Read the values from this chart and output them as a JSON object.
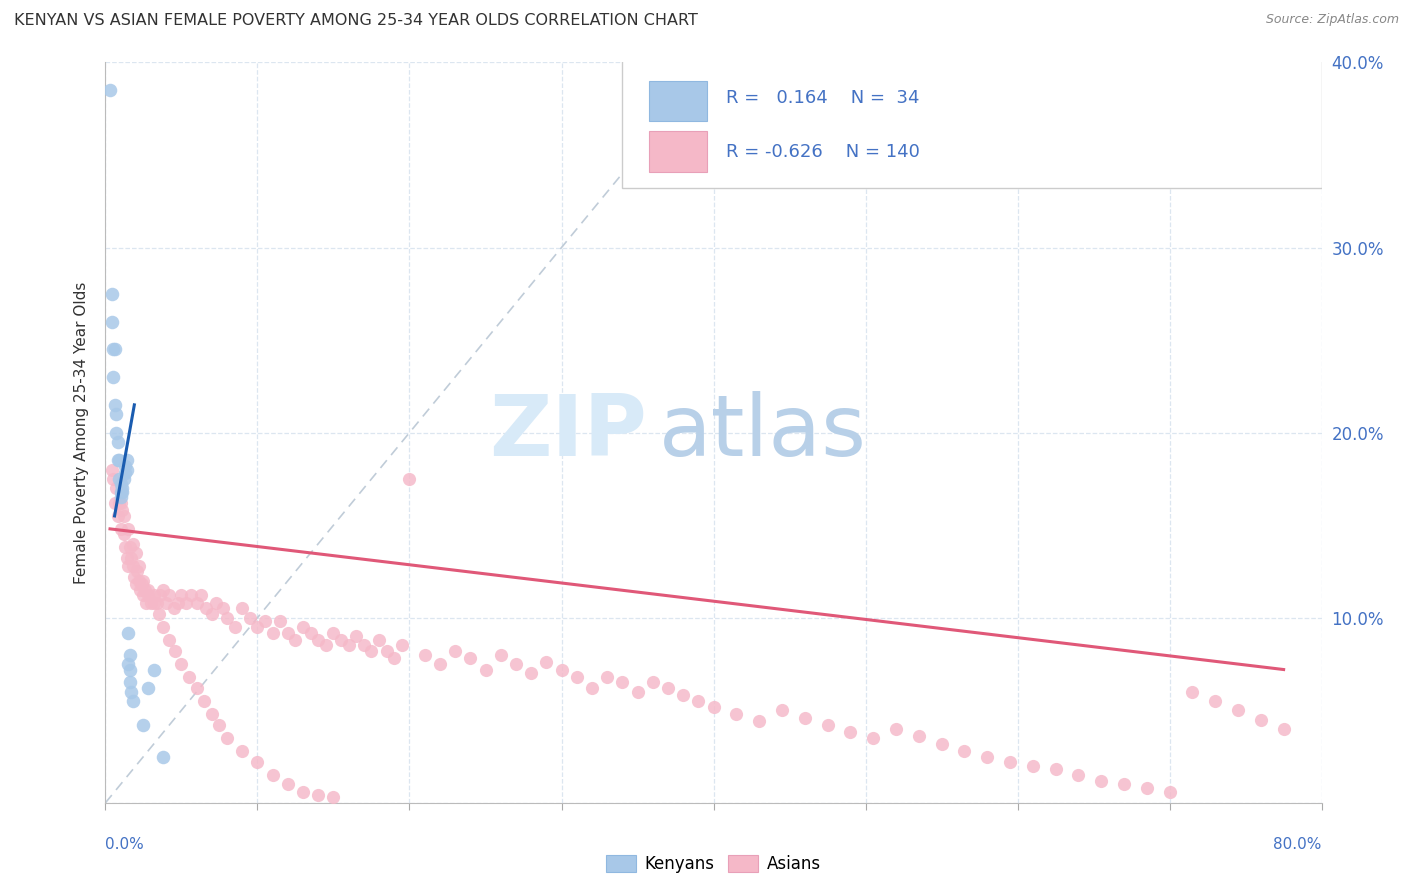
{
  "title": "KENYAN VS ASIAN FEMALE POVERTY AMONG 25-34 YEAR OLDS CORRELATION CHART",
  "source": "Source: ZipAtlas.com",
  "ylabel": "Female Poverty Among 25-34 Year Olds",
  "xlim": [
    0.0,
    0.8
  ],
  "ylim": [
    0.0,
    0.4
  ],
  "kenyan_R": 0.164,
  "kenyan_N": 34,
  "asian_R": -0.626,
  "asian_N": 140,
  "kenyan_dot_color": "#a8c8e8",
  "asian_dot_color": "#f5b8c8",
  "kenyan_line_color": "#1a5cb0",
  "asian_line_color": "#e05878",
  "ref_line_color": "#c0ccd8",
  "text_blue": "#4472c4",
  "text_dark": "#333333",
  "text_source": "#888888",
  "watermark_zip_color": "#d8eaf8",
  "watermark_atlas_color": "#b8d0e8",
  "grid_color": "#dce6f0",
  "legend_box_color": "#f0f0f0",
  "kenyan_x": [
    0.003,
    0.004,
    0.004,
    0.005,
    0.005,
    0.006,
    0.006,
    0.007,
    0.007,
    0.008,
    0.008,
    0.009,
    0.009,
    0.01,
    0.01,
    0.01,
    0.011,
    0.011,
    0.012,
    0.013,
    0.013,
    0.014,
    0.014,
    0.015,
    0.015,
    0.016,
    0.016,
    0.016,
    0.017,
    0.018,
    0.025,
    0.028,
    0.032,
    0.038
  ],
  "kenyan_y": [
    0.385,
    0.275,
    0.26,
    0.245,
    0.23,
    0.245,
    0.215,
    0.21,
    0.2,
    0.195,
    0.185,
    0.185,
    0.175,
    0.172,
    0.168,
    0.165,
    0.168,
    0.17,
    0.175,
    0.178,
    0.182,
    0.18,
    0.185,
    0.092,
    0.075,
    0.072,
    0.065,
    0.08,
    0.06,
    0.055,
    0.042,
    0.062,
    0.072,
    0.025
  ],
  "asian_x": [
    0.004,
    0.005,
    0.006,
    0.007,
    0.008,
    0.009,
    0.01,
    0.011,
    0.012,
    0.013,
    0.014,
    0.015,
    0.016,
    0.017,
    0.018,
    0.019,
    0.02,
    0.021,
    0.022,
    0.023,
    0.024,
    0.025,
    0.026,
    0.027,
    0.028,
    0.03,
    0.032,
    0.034,
    0.036,
    0.038,
    0.04,
    0.042,
    0.045,
    0.048,
    0.05,
    0.053,
    0.056,
    0.06,
    0.063,
    0.066,
    0.07,
    0.073,
    0.077,
    0.08,
    0.085,
    0.09,
    0.095,
    0.1,
    0.105,
    0.11,
    0.115,
    0.12,
    0.125,
    0.13,
    0.135,
    0.14,
    0.145,
    0.15,
    0.155,
    0.16,
    0.165,
    0.17,
    0.175,
    0.18,
    0.185,
    0.19,
    0.195,
    0.2,
    0.21,
    0.22,
    0.23,
    0.24,
    0.25,
    0.26,
    0.27,
    0.28,
    0.29,
    0.3,
    0.31,
    0.32,
    0.33,
    0.34,
    0.35,
    0.36,
    0.37,
    0.38,
    0.39,
    0.4,
    0.415,
    0.43,
    0.445,
    0.46,
    0.475,
    0.49,
    0.505,
    0.52,
    0.535,
    0.55,
    0.565,
    0.58,
    0.595,
    0.61,
    0.625,
    0.64,
    0.655,
    0.67,
    0.685,
    0.7,
    0.715,
    0.73,
    0.745,
    0.76,
    0.775,
    0.01,
    0.012,
    0.015,
    0.018,
    0.02,
    0.022,
    0.025,
    0.028,
    0.032,
    0.035,
    0.038,
    0.042,
    0.046,
    0.05,
    0.055,
    0.06,
    0.065,
    0.07,
    0.075,
    0.08,
    0.09,
    0.1,
    0.11,
    0.12,
    0.13,
    0.14,
    0.15
  ],
  "asian_y": [
    0.18,
    0.175,
    0.162,
    0.17,
    0.155,
    0.162,
    0.148,
    0.158,
    0.145,
    0.138,
    0.132,
    0.128,
    0.138,
    0.132,
    0.128,
    0.122,
    0.118,
    0.125,
    0.12,
    0.115,
    0.118,
    0.112,
    0.115,
    0.108,
    0.112,
    0.108,
    0.112,
    0.108,
    0.112,
    0.115,
    0.108,
    0.112,
    0.105,
    0.108,
    0.112,
    0.108,
    0.112,
    0.108,
    0.112,
    0.105,
    0.102,
    0.108,
    0.105,
    0.1,
    0.095,
    0.105,
    0.1,
    0.095,
    0.098,
    0.092,
    0.098,
    0.092,
    0.088,
    0.095,
    0.092,
    0.088,
    0.085,
    0.092,
    0.088,
    0.085,
    0.09,
    0.085,
    0.082,
    0.088,
    0.082,
    0.078,
    0.085,
    0.175,
    0.08,
    0.075,
    0.082,
    0.078,
    0.072,
    0.08,
    0.075,
    0.07,
    0.076,
    0.072,
    0.068,
    0.062,
    0.068,
    0.065,
    0.06,
    0.065,
    0.062,
    0.058,
    0.055,
    0.052,
    0.048,
    0.044,
    0.05,
    0.046,
    0.042,
    0.038,
    0.035,
    0.04,
    0.036,
    0.032,
    0.028,
    0.025,
    0.022,
    0.02,
    0.018,
    0.015,
    0.012,
    0.01,
    0.008,
    0.006,
    0.06,
    0.055,
    0.05,
    0.045,
    0.04,
    0.162,
    0.155,
    0.148,
    0.14,
    0.135,
    0.128,
    0.12,
    0.115,
    0.108,
    0.102,
    0.095,
    0.088,
    0.082,
    0.075,
    0.068,
    0.062,
    0.055,
    0.048,
    0.042,
    0.035,
    0.028,
    0.022,
    0.015,
    0.01,
    0.006,
    0.004,
    0.003
  ],
  "kenyan_trend_x": [
    0.006,
    0.019
  ],
  "kenyan_trend_y": [
    0.155,
    0.215
  ],
  "asian_trend_x0": 0.003,
  "asian_trend_x1": 0.775,
  "asian_trend_y0": 0.148,
  "asian_trend_y1": 0.072
}
